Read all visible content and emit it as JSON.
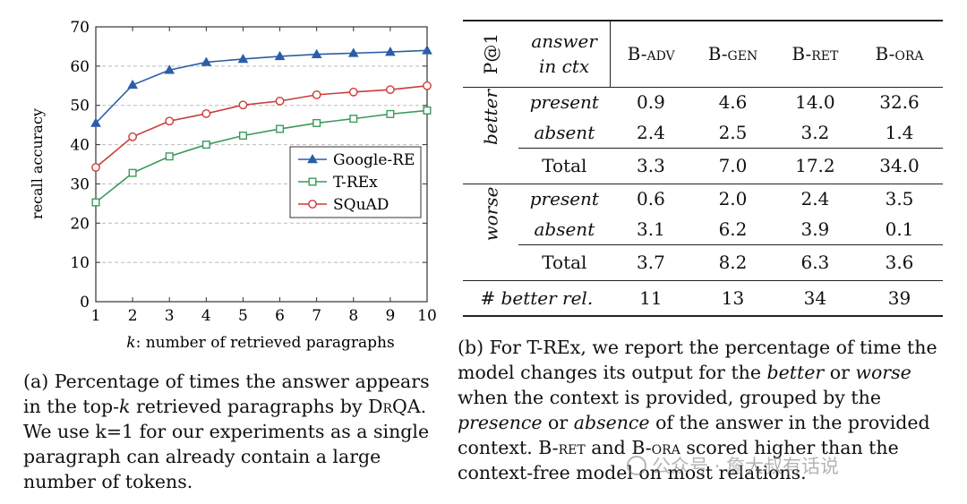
{
  "chart_data": {
    "type": "line",
    "title": "",
    "xlabel": "k: number of retrieved paragraphs",
    "xlabel_var": "k",
    "xlabel_rest": ": number of retrieved paragraphs",
    "ylabel": "recall accuracy",
    "x": [
      1,
      2,
      3,
      4,
      5,
      6,
      7,
      8,
      9,
      10
    ],
    "xlim": [
      1,
      10
    ],
    "ylim": [
      0,
      70
    ],
    "yticks": [
      0,
      10,
      20,
      30,
      40,
      50,
      60,
      70
    ],
    "grid": "horizontal dashed",
    "legend_position": "right",
    "series": [
      {
        "name": "Google-RE",
        "marker": "triangle",
        "color": "#2b5ea7",
        "values": [
          45.5,
          55.2,
          59.0,
          61.0,
          61.8,
          62.5,
          63.0,
          63.3,
          63.6,
          64.0
        ]
      },
      {
        "name": "T-REx",
        "marker": "square",
        "color": "#3a9a5a",
        "values": [
          25.3,
          32.8,
          37.0,
          40.0,
          42.3,
          44.0,
          45.5,
          46.6,
          47.8,
          48.7
        ]
      },
      {
        "name": "SQuAD",
        "marker": "circle",
        "color": "#cc3b3b",
        "values": [
          34.2,
          42.0,
          46.0,
          47.9,
          50.1,
          51.1,
          52.7,
          53.4,
          54.0,
          55.0
        ]
      }
    ]
  },
  "caption_a": {
    "prefix": "(a) Percentage of times the answer appears in the top-",
    "k": "k",
    "mid": " retrieved paragraphs by ",
    "drqa": "DrQA",
    "suffix": ". We use k=1 for our experiments as a single paragraph can already contain a large number of tokens."
  },
  "table": {
    "metric": "P@1",
    "answer_header_1": "answer",
    "answer_header_2": "in ctx",
    "columns": [
      "B-adv",
      "B-gen",
      "B-ret",
      "B-ora"
    ],
    "groups": [
      {
        "label": "better",
        "rows": [
          {
            "label": "present",
            "values": [
              "0.9",
              "4.6",
              "14.0",
              "32.6"
            ]
          },
          {
            "label": "absent",
            "values": [
              "2.4",
              "2.5",
              "3.2",
              "1.4"
            ]
          }
        ],
        "total": {
          "label": "Total",
          "values": [
            "3.3",
            "7.0",
            "17.2",
            "34.0"
          ]
        }
      },
      {
        "label": "worse",
        "rows": [
          {
            "label": "present",
            "values": [
              "0.6",
              "2.0",
              "2.4",
              "3.5"
            ]
          },
          {
            "label": "absent",
            "values": [
              "3.1",
              "6.2",
              "3.9",
              "0.1"
            ]
          }
        ],
        "total": {
          "label": "Total",
          "values": [
            "3.7",
            "8.2",
            "6.3",
            "3.6"
          ]
        }
      }
    ],
    "footer": {
      "label": "# better rel.",
      "values": [
        "11",
        "13",
        "34",
        "39"
      ]
    }
  },
  "caption_b": {
    "p1": "(b) For T-REx, we report the percentage of time the model changes its output for the ",
    "better": "better",
    "p2": " or ",
    "worse": "worse",
    "p3": " when the context is provided, grouped by the ",
    "presence": "presence",
    "p4": " or ",
    "absence": "absence",
    "p5": " of the answer in the provided context. ",
    "bret": "B-ret",
    "p6": " and ",
    "bora": "B-ora",
    "p7": " scored higher than the context-free model on most relations."
  },
  "watermark": "公众号 · 詹大叔有话说"
}
